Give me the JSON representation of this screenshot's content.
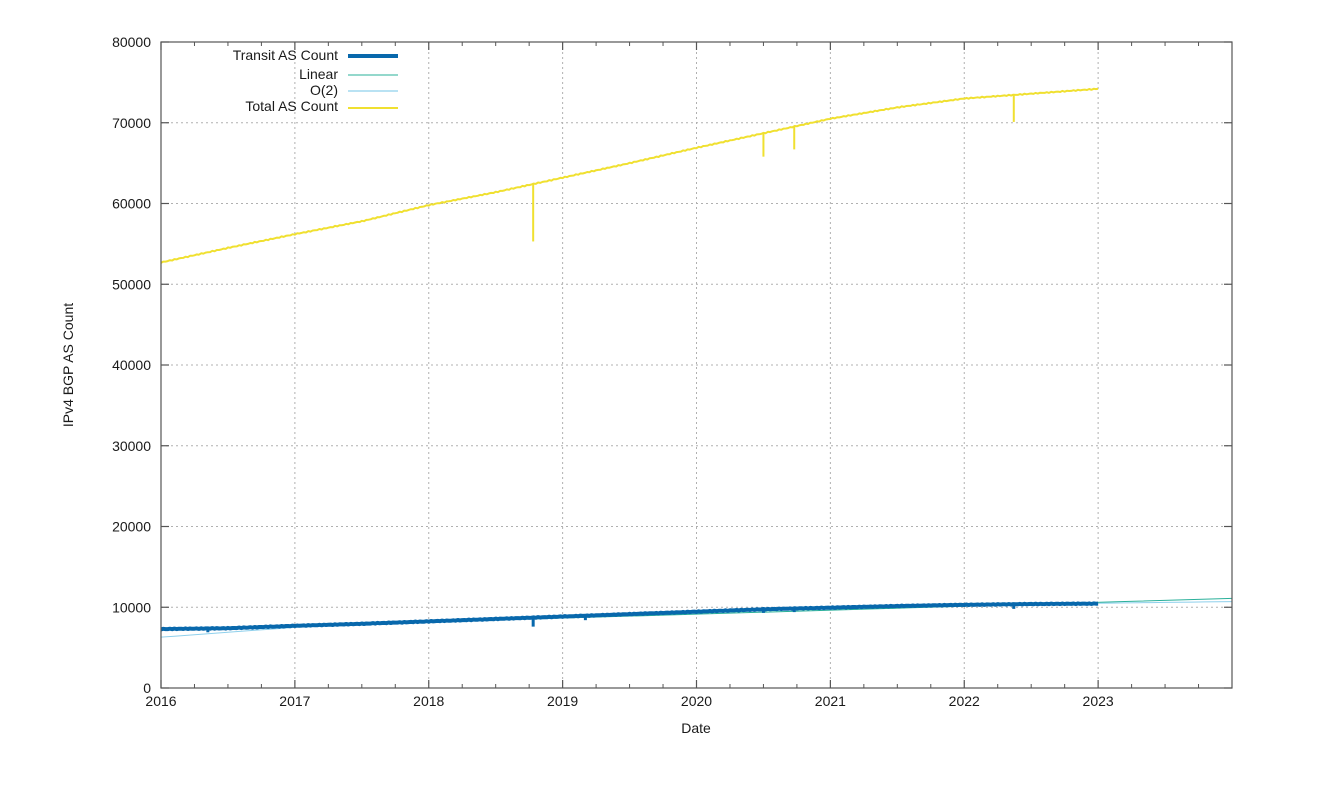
{
  "chart_data": {
    "type": "line",
    "title": "",
    "xlabel": "Date",
    "ylabel": "IPv4 BGP AS Count",
    "xlim": [
      2016,
      2024
    ],
    "ylim": [
      0,
      80000
    ],
    "grid": true,
    "legend_position": "top-left (inside)",
    "x_ticks": [
      "2016",
      "2017",
      "2018",
      "2019",
      "2020",
      "2021",
      "2022",
      "2023"
    ],
    "y_ticks": [
      "0",
      "10000",
      "20000",
      "30000",
      "40000",
      "50000",
      "60000",
      "70000",
      "80000"
    ],
    "series": [
      {
        "name": "Transit AS Count",
        "color": "#0868ac",
        "width": 4,
        "x": [
          2016.0,
          2016.5,
          2017.0,
          2017.5,
          2018.0,
          2018.5,
          2019.0,
          2019.5,
          2020.0,
          2020.5,
          2021.0,
          2021.5,
          2022.0,
          2022.5,
          2023.0
        ],
        "values": [
          7300,
          7400,
          7700,
          7950,
          8250,
          8550,
          8850,
          9150,
          9450,
          9750,
          9950,
          10150,
          10300,
          10400,
          10450
        ],
        "dips": [
          {
            "x": 2016.35,
            "value": 6900
          },
          {
            "x": 2018.78,
            "value": 7600
          },
          {
            "x": 2019.17,
            "value": 8400
          },
          {
            "x": 2020.5,
            "value": 9300
          },
          {
            "x": 2020.73,
            "value": 9400
          },
          {
            "x": 2022.37,
            "value": 9800
          }
        ]
      },
      {
        "name": "Linear",
        "color": "#2ab09a",
        "width": 1,
        "x": [
          2016.0,
          2024.0
        ],
        "values": [
          7200,
          11100
        ]
      },
      {
        "name": "O(2)",
        "color": "#8fd0ec",
        "width": 1,
        "x": [
          2016.0,
          2017.0,
          2018.0,
          2019.0,
          2020.0,
          2021.0,
          2022.0,
          2023.0,
          2024.0
        ],
        "values": [
          6300,
          7500,
          8300,
          9000,
          9500,
          9900,
          10250,
          10500,
          10700
        ]
      },
      {
        "name": "Total AS Count",
        "color": "#f0e030",
        "width": 2,
        "x": [
          2016.0,
          2016.5,
          2017.0,
          2017.5,
          2018.0,
          2018.5,
          2019.0,
          2019.5,
          2020.0,
          2020.5,
          2021.0,
          2021.5,
          2022.0,
          2022.5,
          2023.0
        ],
        "values": [
          52700,
          54500,
          56200,
          57800,
          59800,
          61400,
          63200,
          65000,
          66900,
          68700,
          70500,
          71900,
          73000,
          73600,
          74200
        ],
        "dips": [
          {
            "x": 2018.78,
            "value": 55300
          },
          {
            "x": 2020.5,
            "value": 65800
          },
          {
            "x": 2020.73,
            "value": 66700
          },
          {
            "x": 2022.37,
            "value": 70100
          }
        ]
      }
    ]
  },
  "legend": {
    "items": [
      {
        "label": "Transit AS Count",
        "color": "#0868ac"
      },
      {
        "label": "Linear",
        "color": "#2ab09a"
      },
      {
        "label": "O(2)",
        "color": "#8fd0ec"
      },
      {
        "label": "Total AS Count",
        "color": "#f0e030"
      }
    ]
  },
  "axes": {
    "xlabel": "Date",
    "ylabel": "IPv4 BGP AS Count"
  }
}
